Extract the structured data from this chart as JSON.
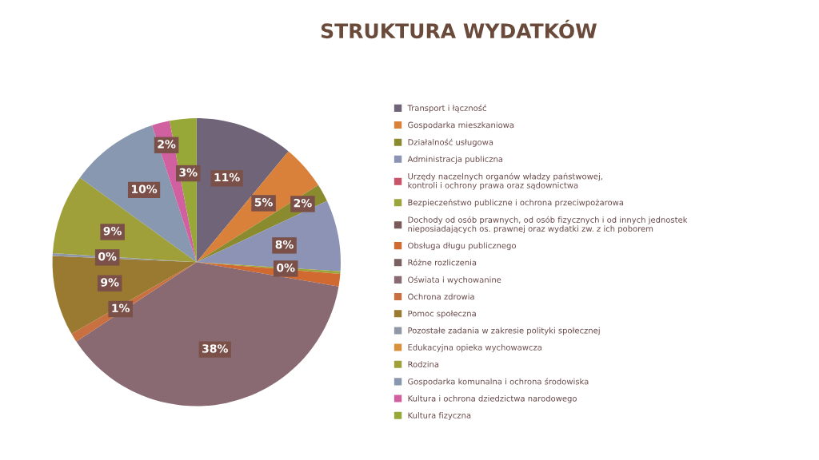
{
  "chart_data": {
    "type": "pie",
    "title": "STRUKTURA WYDATKÓW",
    "categories": [
      "Transport i łączność",
      "Gospodarka mieszkaniowa",
      "Działalność usługowa",
      "Administracja publiczna",
      "Urzędy naczelnych organów władzy państwowej, kontroli i ochrony prawa oraz sądownictwa",
      "Bezpieczeństwo publiczne i ochrona przeciwpożarowa",
      "Dochody od osób prawnych, od osób fizycznych i od innych jednostek nieposiadających os. prawnej oraz wydatki zw. z ich poborem",
      "Obsługa długu publicznego",
      "Różne rozliczenia",
      "Oświata i wychowanine",
      "Ochrona zdrowia",
      "Pomoc społeczna",
      "Pozostałe zadania w zakresie polityki społecznej",
      "Edukacyjna opieka wychowawcza",
      "Rodzina",
      "Gospodarka komunalna i ochrona środowiska",
      "Kultura i ochrona dziedzictwa narodowego",
      "Kultura fizyczna"
    ],
    "values": [
      11,
      5,
      2,
      8,
      0,
      0.3,
      0,
      1.4,
      0,
      38,
      1,
      9,
      0.3,
      0,
      9,
      10,
      2,
      3
    ],
    "value_labels": [
      "11%",
      "5%",
      "2%",
      "8%",
      null,
      "0%",
      null,
      null,
      null,
      "38%",
      "1%",
      "9%",
      "0%",
      null,
      "9%",
      "10%",
      "2%",
      "3%"
    ],
    "colors": [
      "#6f6478",
      "#d9803a",
      "#8a8a2e",
      "#8c93b5",
      "#c8556a",
      "#9aa63a",
      "#7a5a58",
      "#d06a30",
      "#7a6060",
      "#8a6a72",
      "#c87040",
      "#9a7a30",
      "#9098a8",
      "#d9903a",
      "#a0a03a",
      "#8898b0",
      "#d060a0",
      "#98a838"
    ],
    "legend": "right"
  }
}
